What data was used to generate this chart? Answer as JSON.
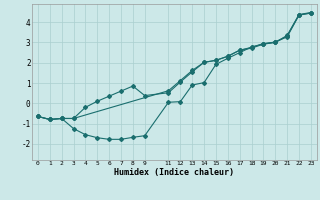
{
  "title": "",
  "xlabel": "Humidex (Indice chaleur)",
  "bg_color": "#cce8e8",
  "grid_color": "#aacfcf",
  "line_color": "#1a6e6e",
  "xlim": [
    -0.5,
    23.5
  ],
  "ylim": [
    -2.8,
    4.9
  ],
  "xticks": [
    0,
    1,
    2,
    3,
    4,
    5,
    6,
    7,
    8,
    9,
    11,
    12,
    13,
    14,
    15,
    16,
    17,
    18,
    19,
    20,
    21,
    22,
    23
  ],
  "yticks": [
    -2,
    -1,
    0,
    1,
    2,
    3,
    4
  ],
  "line1_x": [
    0,
    1,
    2,
    3,
    4,
    5,
    6,
    7,
    8,
    9,
    11,
    12,
    13,
    14,
    15,
    16,
    17,
    18,
    19,
    20,
    21,
    22,
    23
  ],
  "line1_y": [
    -0.65,
    -0.8,
    -0.75,
    -1.25,
    -1.55,
    -1.7,
    -1.78,
    -1.78,
    -1.68,
    -1.6,
    0.05,
    0.08,
    0.9,
    1.02,
    1.92,
    2.22,
    2.5,
    2.78,
    2.92,
    3.0,
    3.35,
    4.38,
    4.48
  ],
  "line2_x": [
    0,
    1,
    2,
    3,
    4,
    5,
    6,
    7,
    8,
    9,
    11,
    12,
    13,
    14,
    15,
    16,
    17,
    18,
    19,
    20,
    21,
    22,
    23
  ],
  "line2_y": [
    -0.65,
    -0.8,
    -0.75,
    -0.75,
    -0.2,
    0.1,
    0.35,
    0.6,
    0.85,
    0.38,
    0.52,
    1.05,
    1.55,
    2.02,
    2.12,
    2.32,
    2.62,
    2.72,
    2.92,
    3.02,
    3.28,
    4.35,
    4.45
  ],
  "line3_x": [
    0,
    1,
    2,
    3,
    11,
    12,
    13,
    14,
    15,
    16,
    17,
    18,
    19,
    20,
    21,
    22,
    23
  ],
  "line3_y": [
    -0.65,
    -0.8,
    -0.75,
    -0.75,
    0.62,
    1.12,
    1.62,
    2.02,
    2.12,
    2.32,
    2.62,
    2.76,
    2.95,
    3.02,
    3.32,
    4.36,
    4.46
  ]
}
